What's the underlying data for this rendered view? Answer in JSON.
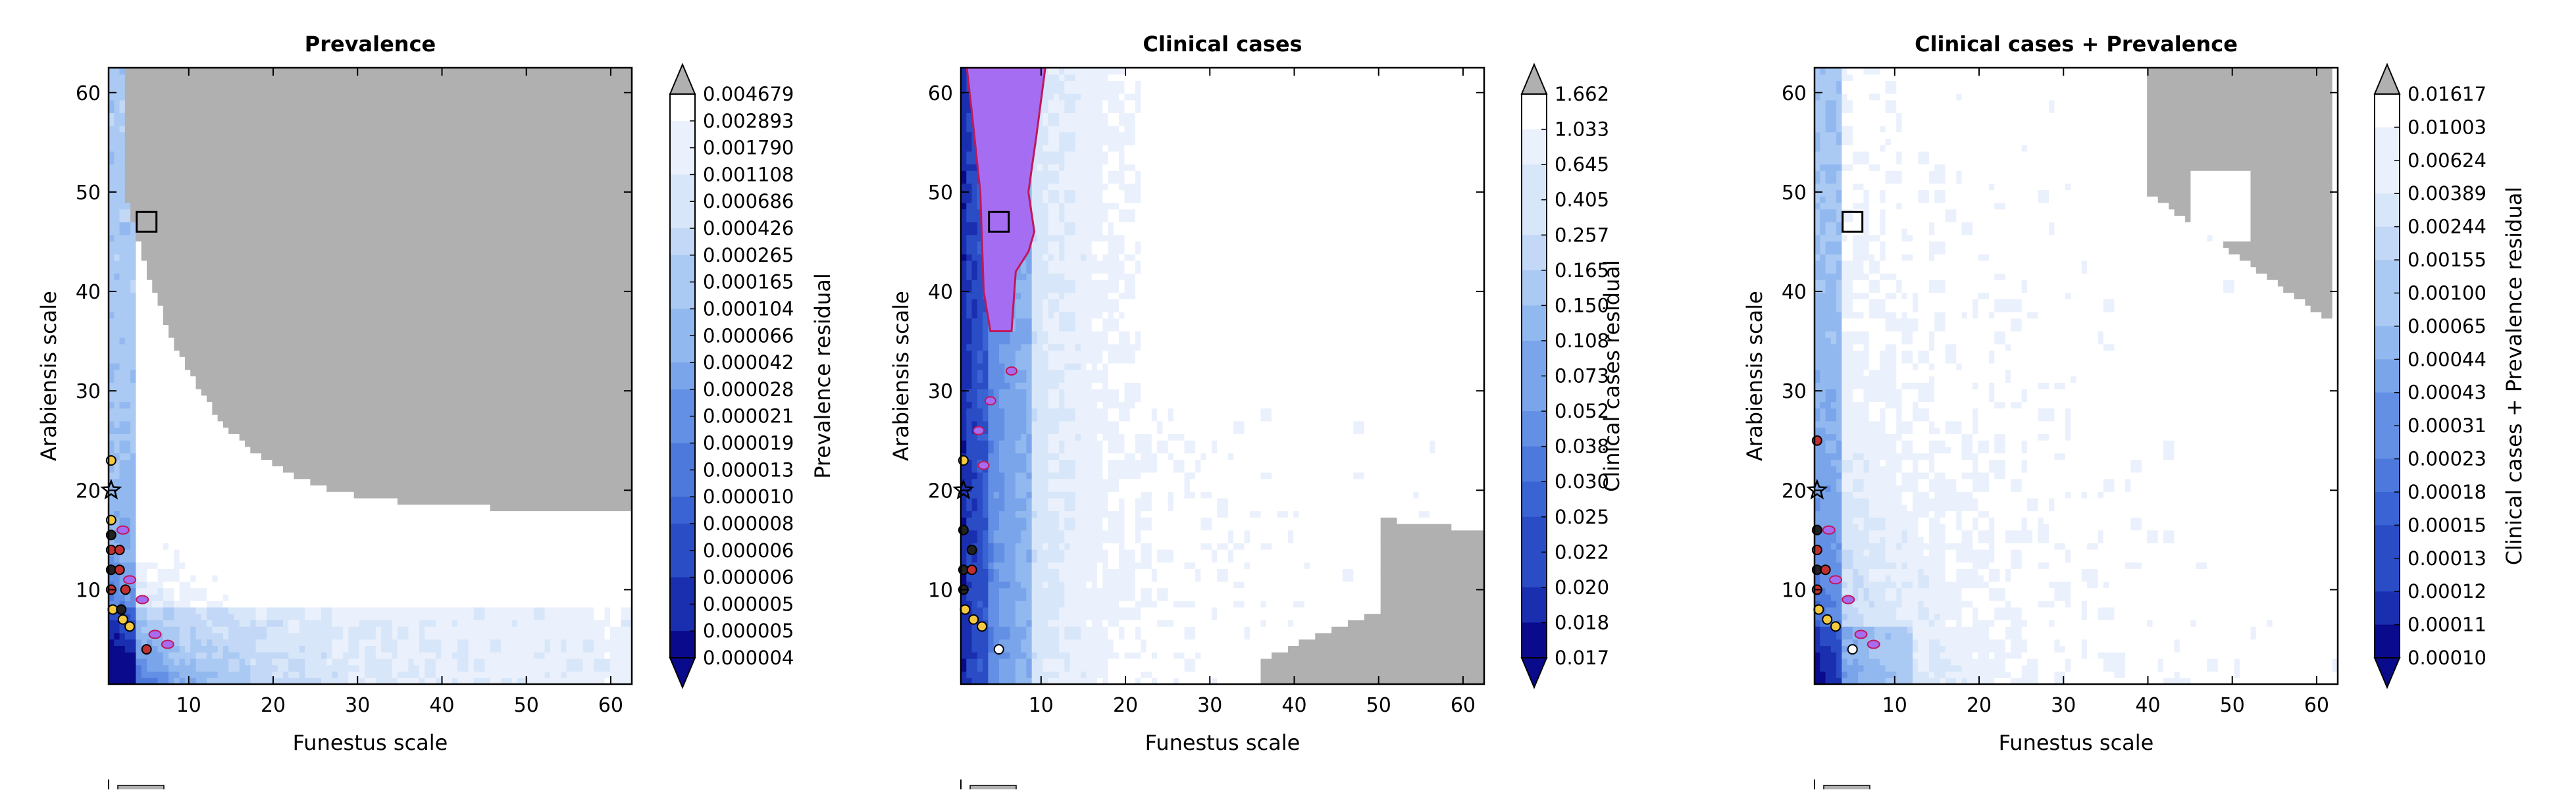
{
  "chart_data": [
    {
      "type": "contour",
      "title": "Prevalence",
      "xlabel": "Funestus scale",
      "ylabel": "Arabiensis scale",
      "xlim": [
        0.5,
        62.5
      ],
      "ylim": [
        0.5,
        62.5
      ],
      "xticks": [
        10,
        20,
        30,
        40,
        50,
        60
      ],
      "yticks": [
        10,
        20,
        30,
        40,
        50,
        60
      ],
      "colorbar": {
        "label": "Prevalence residual",
        "levels": [
          "0.004679",
          "0.002893",
          "0.001790",
          "0.001108",
          "0.000686",
          "0.000426",
          "0.000265",
          "0.000165",
          "0.000104",
          "0.000066",
          "0.000042",
          "0.000028",
          "0.000021",
          "0.000019",
          "0.000013",
          "0.000010",
          "0.000008",
          "0.000006",
          "0.000006",
          "0.000005",
          "0.000005",
          "0.000004"
        ]
      },
      "gray_region_pct": 0.1,
      "selected_box": {
        "x": 5,
        "y": 47
      },
      "markers": [
        {
          "x": 0.8,
          "y": 23,
          "c": "#f2c940",
          "shape": "circle"
        },
        {
          "x": 0.8,
          "y": 20,
          "c": "none",
          "shape": "star"
        },
        {
          "x": 0.8,
          "y": 17,
          "c": "#f2c940",
          "shape": "circle"
        },
        {
          "x": 0.8,
          "y": 15.5,
          "c": "#222222",
          "shape": "circle"
        },
        {
          "x": 0.8,
          "y": 14,
          "c": "#c03030",
          "shape": "circle"
        },
        {
          "x": 1.8,
          "y": 14,
          "c": "#c03030",
          "shape": "circle"
        },
        {
          "x": 0.8,
          "y": 12,
          "c": "#222222",
          "shape": "circle"
        },
        {
          "x": 1.8,
          "y": 12,
          "c": "#c03030",
          "shape": "circle"
        },
        {
          "x": 0.8,
          "y": 10,
          "c": "#c03030",
          "shape": "circle"
        },
        {
          "x": 2.5,
          "y": 10,
          "c": "#c03030",
          "shape": "circle"
        },
        {
          "x": 1,
          "y": 8,
          "c": "#f2c940",
          "shape": "circle"
        },
        {
          "x": 2,
          "y": 8,
          "c": "#222222",
          "shape": "circle"
        },
        {
          "x": 2.2,
          "y": 7,
          "c": "#f2c940",
          "shape": "circle"
        },
        {
          "x": 3,
          "y": 6.3,
          "c": "#f2c940",
          "shape": "circle"
        },
        {
          "x": 5,
          "y": 4,
          "c": "#c03030",
          "shape": "circle"
        }
      ]
    },
    {
      "type": "contour",
      "title": "Clinical cases",
      "xlabel": "Funestus scale",
      "ylabel": "Arabiensis scale",
      "xlim": [
        0.5,
        62.5
      ],
      "ylim": [
        0.5,
        62.5
      ],
      "xticks": [
        10,
        20,
        30,
        40,
        50,
        60
      ],
      "yticks": [
        10,
        20,
        30,
        40,
        50,
        60
      ],
      "colorbar": {
        "label": "Clinical cases residual",
        "levels": [
          "1.662",
          "1.033",
          "0.645",
          "0.405",
          "0.257",
          "0.165",
          "0.150",
          "0.108",
          "0.073",
          "0.052",
          "0.038",
          "0.030",
          "0.025",
          "0.022",
          "0.020",
          "0.018",
          "0.017"
        ]
      },
      "gray_region_pct": 0.1,
      "selected_box": {
        "x": 5,
        "y": 47
      },
      "markers": [
        {
          "x": 0.8,
          "y": 23,
          "c": "#f2c940",
          "shape": "circle"
        },
        {
          "x": 0.8,
          "y": 20,
          "c": "none",
          "shape": "star"
        },
        {
          "x": 0.8,
          "y": 16,
          "c": "#222222",
          "shape": "circle"
        },
        {
          "x": 1.8,
          "y": 14,
          "c": "#222222",
          "shape": "circle"
        },
        {
          "x": 0.8,
          "y": 12,
          "c": "#222222",
          "shape": "circle"
        },
        {
          "x": 1.8,
          "y": 12,
          "c": "#c03030",
          "shape": "circle"
        },
        {
          "x": 0.8,
          "y": 10,
          "c": "#222222",
          "shape": "circle"
        },
        {
          "x": 1,
          "y": 8,
          "c": "#f2c940",
          "shape": "circle"
        },
        {
          "x": 2,
          "y": 7,
          "c": "#f2c940",
          "shape": "circle"
        },
        {
          "x": 3,
          "y": 6.3,
          "c": "#f2c940",
          "shape": "circle"
        },
        {
          "x": 5,
          "y": 4,
          "c": "#ffffff",
          "shape": "circle"
        }
      ]
    },
    {
      "type": "contour",
      "title": "Clinical cases + Prevalence",
      "xlabel": "Funestus scale",
      "ylabel": "Arabiensis scale",
      "xlim": [
        0.5,
        62.5
      ],
      "ylim": [
        0.5,
        62.5
      ],
      "xticks": [
        10,
        20,
        30,
        40,
        50,
        60
      ],
      "yticks": [
        10,
        20,
        30,
        40,
        50,
        60
      ],
      "colorbar": {
        "label": "Clinical cases + Prevalence residual",
        "levels": [
          "0.01617",
          "0.01003",
          "0.00624",
          "0.00389",
          "0.00244",
          "0.00155",
          "0.00100",
          "0.00065",
          "0.00044",
          "0.00043",
          "0.00031",
          "0.00023",
          "0.00018",
          "0.00015",
          "0.00013",
          "0.00012",
          "0.00011",
          "0.00010"
        ]
      },
      "gray_region_pct": 0.1,
      "selected_box": {
        "x": 5,
        "y": 47
      },
      "markers": [
        {
          "x": 0.8,
          "y": 25,
          "c": "#c03030",
          "shape": "circle"
        },
        {
          "x": 0.8,
          "y": 20,
          "c": "none",
          "shape": "star"
        },
        {
          "x": 0.8,
          "y": 16,
          "c": "#222222",
          "shape": "circle"
        },
        {
          "x": 0.8,
          "y": 14,
          "c": "#c03030",
          "shape": "circle"
        },
        {
          "x": 0.8,
          "y": 12,
          "c": "#222222",
          "shape": "circle"
        },
        {
          "x": 1.8,
          "y": 12,
          "c": "#c03030",
          "shape": "circle"
        },
        {
          "x": 0.8,
          "y": 10,
          "c": "#c03030",
          "shape": "circle"
        },
        {
          "x": 1,
          "y": 8,
          "c": "#f2c940",
          "shape": "circle"
        },
        {
          "x": 2,
          "y": 7,
          "c": "#f2c940",
          "shape": "circle"
        },
        {
          "x": 3,
          "y": 6.3,
          "c": "#f2c940",
          "shape": "circle"
        },
        {
          "x": 5,
          "y": 4,
          "c": "#ffffff",
          "shape": "circle"
        }
      ]
    }
  ],
  "colors": {
    "gray_region": "#b0b0b0",
    "accent_contour": "#c0185a",
    "accent_fill": "#a56ef2",
    "colormap": [
      "#0a0a8c",
      "#1a2fb0",
      "#2a4dc6",
      "#3a63d4",
      "#4d79dd",
      "#6390e4",
      "#7aa5ea",
      "#92b9ef",
      "#aac9f3",
      "#c2d8f6",
      "#d8e6f9",
      "#eaf1fc",
      "#ffffff"
    ]
  }
}
